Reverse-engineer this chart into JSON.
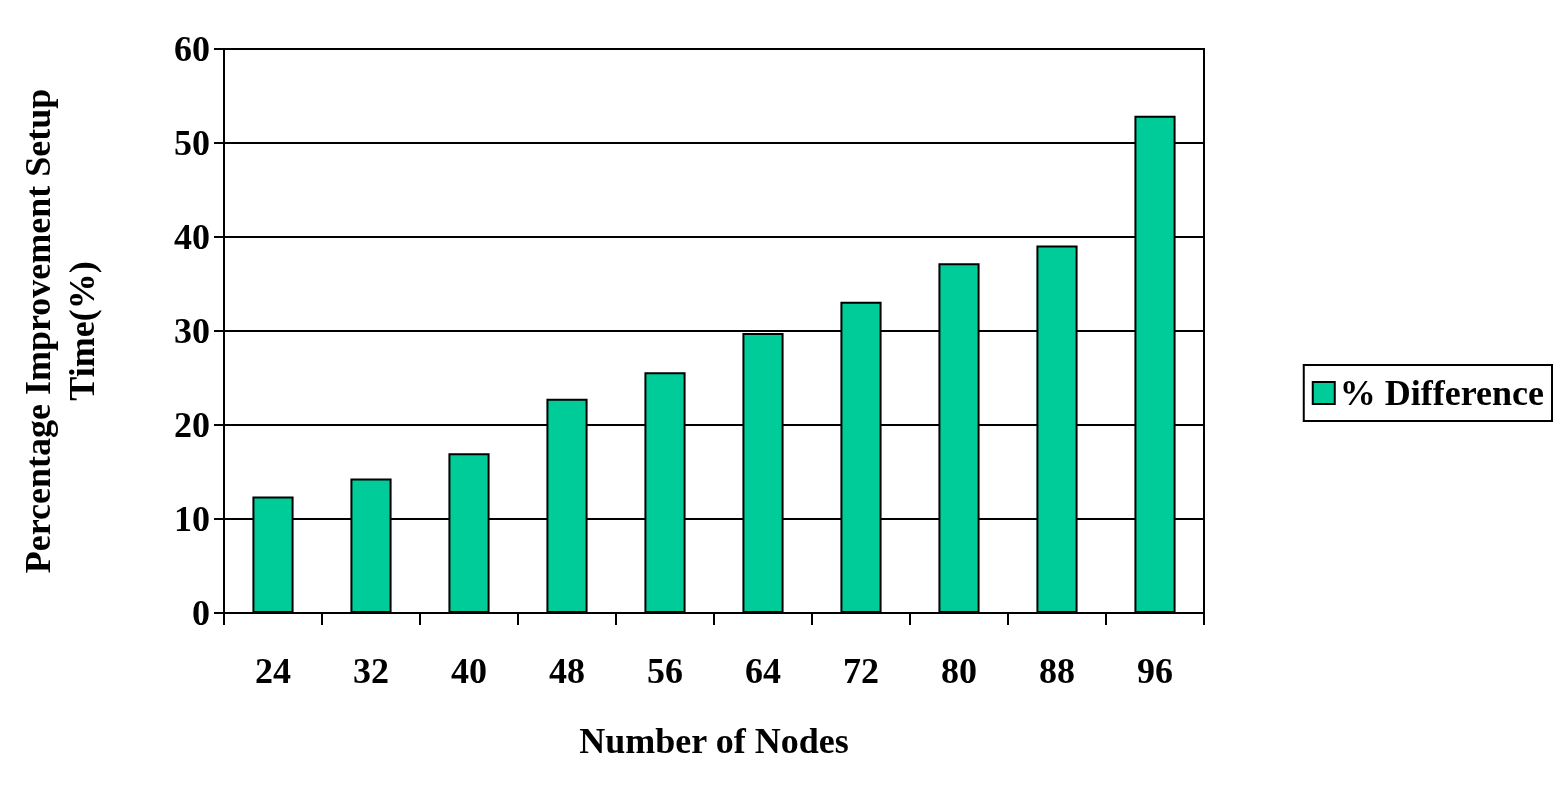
{
  "chart_data": {
    "type": "bar",
    "xlabel": "Number of Nodes",
    "ylabel": "Percentage Improvement Setup\nTime(%)",
    "categories": [
      "24",
      "32",
      "40",
      "48",
      "56",
      "64",
      "72",
      "80",
      "88",
      "96"
    ],
    "series": [
      {
        "name": "% Difference",
        "color": "#00cc99",
        "values": [
          12.4,
          14.3,
          17.0,
          22.8,
          25.6,
          29.8,
          33.1,
          37.2,
          39.1,
          52.9
        ]
      }
    ],
    "ylim": [
      0,
      60
    ],
    "yticks": [
      0,
      10,
      20,
      30,
      40,
      50,
      60
    ],
    "grid": "y",
    "legend": "right"
  }
}
